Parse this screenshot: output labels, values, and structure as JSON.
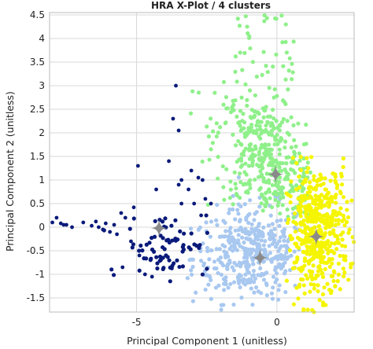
{
  "chart_data": {
    "type": "scatter",
    "title": "HRA X-Plot / 4 clusters",
    "xlabel": "Principal Component 1 (unitless)",
    "ylabel": "Principal Component 2 (unitless)",
    "xlim": [
      -8.1,
      2.75
    ],
    "ylim": [
      -1.8,
      4.55
    ],
    "x_ticks": [
      -5,
      0
    ],
    "x_tick_labels": [
      "-5",
      "0"
    ],
    "y_ticks": [
      -1.5,
      -1,
      -0.5,
      0,
      0.5,
      1,
      1.5,
      2,
      2.5,
      3,
      3.5,
      4,
      4.5
    ],
    "y_tick_labels": [
      "-1.5",
      "-1",
      "-0.5",
      "0",
      "0.5",
      "1",
      "1.5",
      "2",
      "2.5",
      "3",
      "3.5",
      "4",
      "4.5"
    ],
    "grid": true,
    "colors": {
      "cluster_1": "#0a1a7a",
      "cluster_2": "#a8c8f0",
      "cluster_3": "#8ff08a",
      "cluster_4": "#f5f500",
      "centroid": "#8a8a8a",
      "grid": "#d8d8d8",
      "frame": "#bbbbbb"
    },
    "series": [
      {
        "color": "#0a1a7a",
        "centroid": [
          -4.2,
          -0.02
        ],
        "points": [
          [
            -8.0,
            0.1
          ],
          [
            -7.85,
            0.2
          ],
          [
            -7.7,
            0.08
          ],
          [
            -7.6,
            0.05
          ],
          [
            -7.5,
            0.05
          ],
          [
            -7.3,
            0.0
          ],
          [
            -6.9,
            0.1
          ],
          [
            -6.6,
            0.03
          ],
          [
            -6.45,
            0.12
          ],
          [
            -6.35,
            0.0
          ],
          [
            -6.2,
            -0.05
          ],
          [
            -6.1,
            0.08
          ],
          [
            -5.95,
            -0.1
          ],
          [
            -5.8,
            0.05
          ],
          [
            -5.7,
            -0.15
          ],
          [
            -5.55,
            0.3
          ],
          [
            -5.4,
            0.2
          ],
          [
            -5.1,
            0.42
          ],
          [
            -5.5,
            -0.85
          ],
          [
            -5.2,
            -0.3
          ],
          [
            -4.9,
            -0.6
          ],
          [
            -4.7,
            -1.0
          ],
          [
            -4.45,
            -1.05
          ],
          [
            -4.95,
            1.3
          ],
          [
            -4.3,
            0.8
          ],
          [
            -3.85,
            1.4
          ],
          [
            -3.7,
            2.3
          ],
          [
            -3.5,
            0.9
          ],
          [
            -3.5,
            2.05
          ],
          [
            -3.4,
            1.0
          ],
          [
            -3.15,
            0.8
          ],
          [
            -3.05,
            1.2
          ],
          [
            -2.95,
            0.5
          ],
          [
            -2.8,
            1.05
          ],
          [
            -2.65,
            1.0
          ],
          [
            -2.55,
            0.6
          ],
          [
            -2.7,
            0.25
          ],
          [
            -2.35,
            0.5
          ],
          [
            -3.6,
            3.0
          ],
          [
            -3.4,
            0.5
          ]
        ]
      },
      {
        "color": "#a8c8f0",
        "centroid": [
          -0.6,
          -0.65
        ]
      },
      {
        "color": "#8ff08a",
        "centroid": [
          -0.05,
          1.12
        ]
      },
      {
        "color": "#f5f500",
        "centroid": [
          1.4,
          -0.2
        ]
      }
    ]
  }
}
